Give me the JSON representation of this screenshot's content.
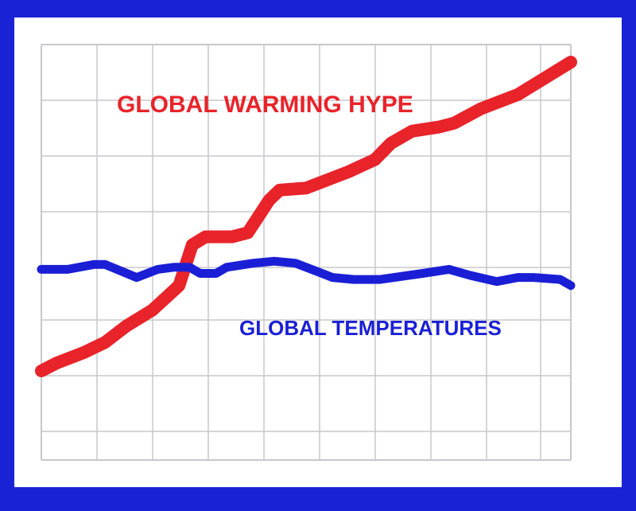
{
  "chart_data": {
    "type": "line",
    "title": "",
    "xlabel": "",
    "ylabel": "",
    "xlim": [
      0,
      10
    ],
    "ylim": [
      0,
      8
    ],
    "grid": true,
    "series": [
      {
        "name": "GLOBAL WARMING HYPE",
        "color": "#e8232a",
        "x": [
          0,
          0.3,
          0.8,
          1.2,
          1.6,
          2.1,
          2.6,
          2.85,
          3.1,
          3.4,
          3.6,
          3.9,
          4.1,
          4.3,
          4.5,
          5.0,
          5.8,
          6.3,
          6.6,
          7.0,
          7.5,
          7.8,
          8.3,
          9.0,
          9.5,
          10.0
        ],
        "y": [
          0.1,
          0.3,
          0.55,
          0.8,
          1.2,
          1.6,
          2.2,
          3.2,
          3.4,
          3.4,
          3.4,
          3.5,
          3.9,
          4.3,
          4.55,
          4.6,
          5.0,
          5.3,
          5.7,
          6.0,
          6.1,
          6.2,
          6.55,
          6.9,
          7.3,
          7.7
        ]
      },
      {
        "name": "GLOBAL TEMPERATURES",
        "color": "#1a1fd6",
        "x": [
          0,
          0.5,
          1.0,
          1.2,
          1.8,
          2.2,
          2.5,
          2.8,
          3.0,
          3.3,
          3.5,
          4.0,
          4.4,
          4.8,
          5.2,
          5.5,
          5.9,
          6.4,
          7.2,
          7.7,
          8.1,
          8.6,
          9.0,
          9.3,
          9.8,
          10.0
        ],
        "y": [
          2.6,
          2.6,
          2.72,
          2.72,
          2.4,
          2.6,
          2.65,
          2.65,
          2.5,
          2.5,
          2.65,
          2.75,
          2.8,
          2.75,
          2.55,
          2.4,
          2.35,
          2.35,
          2.5,
          2.6,
          2.45,
          2.3,
          2.4,
          2.4,
          2.35,
          2.2
        ]
      }
    ],
    "annotations": [
      {
        "text": "GLOBAL WARMING HYPE",
        "series": 0
      },
      {
        "text": "GLOBAL TEMPERATURES",
        "series": 1
      }
    ]
  }
}
